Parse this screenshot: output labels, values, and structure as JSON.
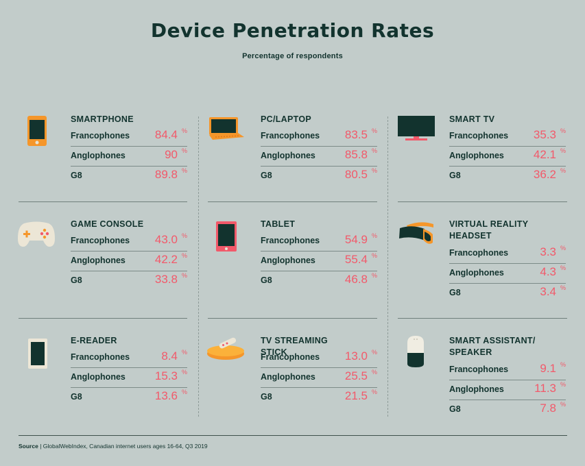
{
  "title": "Device Penetration Rates",
  "subtitle": "Percentage of respondents",
  "row_labels": {
    "fr": "Francophones",
    "an": "Anglophones",
    "g8": "G8"
  },
  "percent_sign": "%",
  "footer": {
    "source_label": "Source",
    "separator": " | ",
    "source_text": "GlobalWebIndex, Canadian internet users ages 16-64, Q3 2019"
  },
  "colors": {
    "background": "#c2ccca",
    "text": "#12332e",
    "value": "#f2596a",
    "icon_orange": "#f5962a",
    "icon_pink": "#f2596a",
    "icon_dark": "#12332e"
  },
  "chart_data": {
    "type": "table",
    "columns": [
      "Francophones",
      "Anglophones",
      "G8"
    ],
    "unit": "%",
    "devices": [
      {
        "name": "SMARTPHONE",
        "icon": "smartphone-icon",
        "values": [
          "84.4",
          "90",
          "89.8"
        ]
      },
      {
        "name": "PC/LAPTOP",
        "icon": "laptop-icon",
        "values": [
          "83.5",
          "85.8",
          "80.5"
        ]
      },
      {
        "name": "SMART TV",
        "icon": "tv-icon",
        "values": [
          "35.3",
          "42.1",
          "36.2"
        ]
      },
      {
        "name": "GAME CONSOLE",
        "icon": "gamepad-icon",
        "values": [
          "43.0",
          "42.2",
          "33.8"
        ]
      },
      {
        "name": "TABLET",
        "icon": "tablet-icon",
        "values": [
          "54.9",
          "55.4",
          "46.8"
        ]
      },
      {
        "name": "VIRTUAL REALITY HEADSET",
        "icon": "vr-headset-icon",
        "values": [
          "3.3",
          "4.3",
          "3.4"
        ]
      },
      {
        "name": "E-READER",
        "icon": "ereader-icon",
        "values": [
          "8.4",
          "15.3",
          "13.6"
        ]
      },
      {
        "name": "TV STREAMING STICK",
        "icon": "streaming-stick-icon",
        "values": [
          "13.0",
          "25.5",
          "21.5"
        ]
      },
      {
        "name": "SMART ASSISTANT/ SPEAKER",
        "icon": "smart-speaker-icon",
        "values": [
          "9.1",
          "11.3",
          "7.8"
        ]
      }
    ]
  }
}
